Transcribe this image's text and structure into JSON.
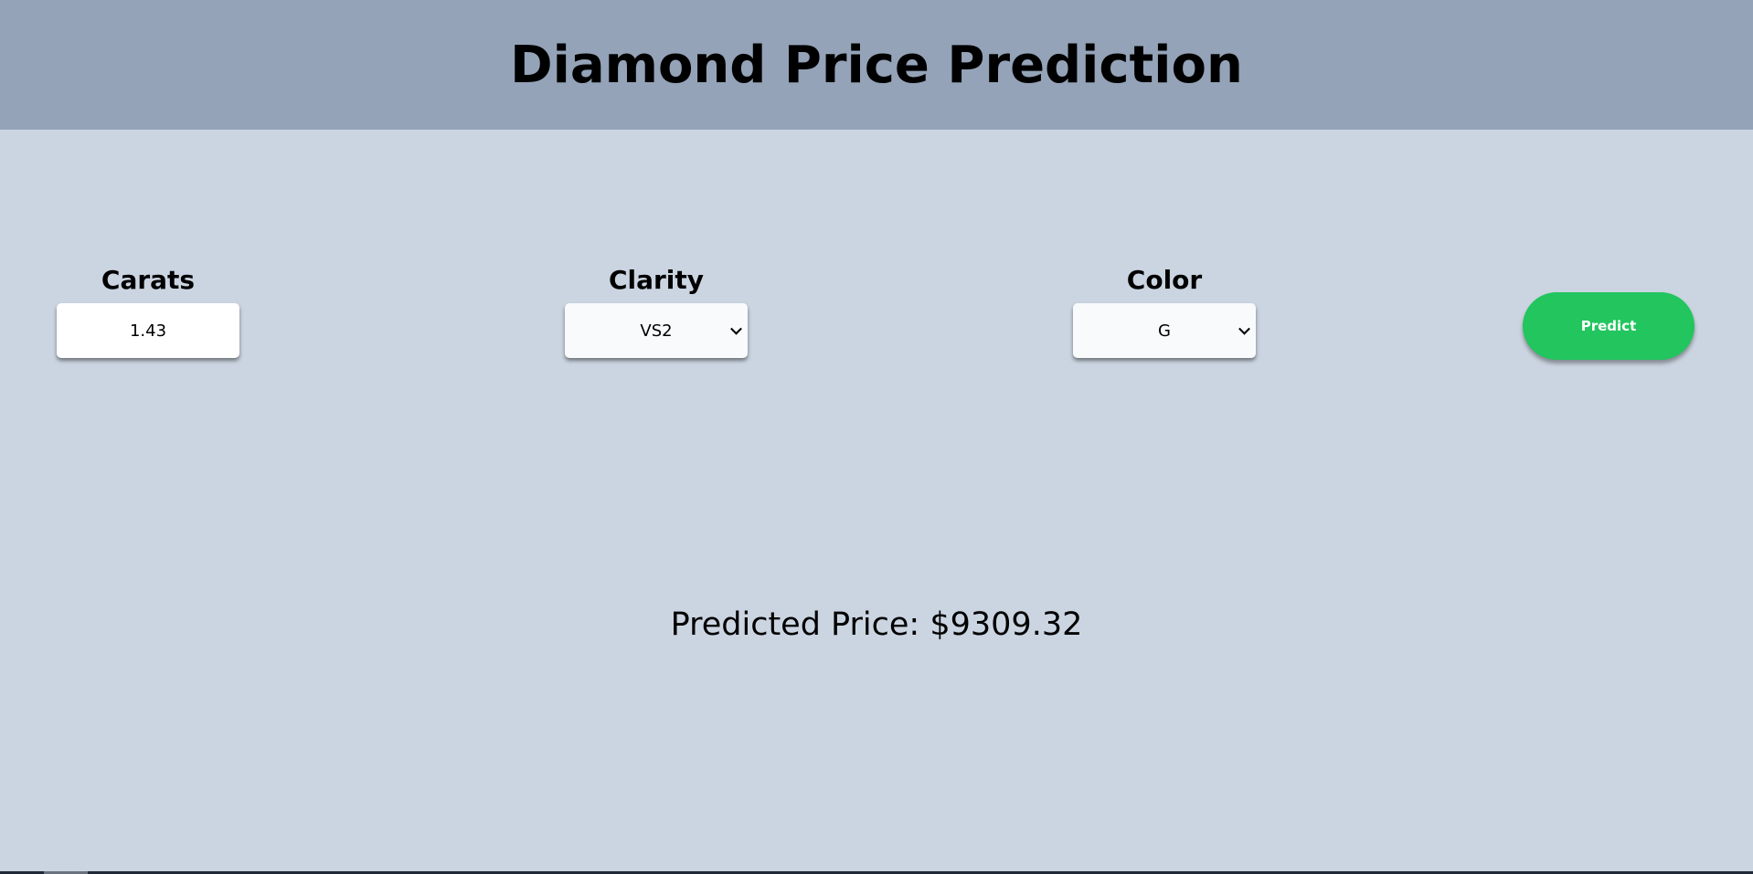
{
  "header": {
    "title": "Diamond Price Prediction"
  },
  "form": {
    "carats": {
      "label": "Carats",
      "value": "1.43"
    },
    "clarity": {
      "label": "Clarity",
      "selected": "VS2"
    },
    "color": {
      "label": "Color",
      "selected": "G"
    },
    "predict_label": "Predict"
  },
  "result": {
    "text": "Predicted Price: $9309.32"
  },
  "colors": {
    "header_bg": "#94a3b8",
    "page_bg": "#cbd5e1",
    "button_bg": "#22c55e"
  }
}
